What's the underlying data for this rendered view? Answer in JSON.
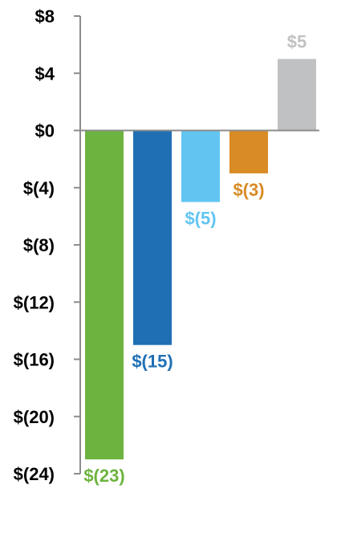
{
  "chart_data": {
    "type": "bar",
    "title": "",
    "xlabel": "",
    "ylabel": "",
    "ylim": [
      -24,
      8
    ],
    "y_ticks": [
      {
        "value": 8,
        "label": "$8"
      },
      {
        "value": 4,
        "label": "$4"
      },
      {
        "value": 0,
        "label": "$0"
      },
      {
        "value": -4,
        "label": "$(4)"
      },
      {
        "value": -8,
        "label": "$(8)"
      },
      {
        "value": -12,
        "label": "$(12)"
      },
      {
        "value": -16,
        "label": "$(16)"
      },
      {
        "value": -20,
        "label": "$(20)"
      },
      {
        "value": -24,
        "label": "$(24)"
      }
    ],
    "grid": false,
    "legend": "none",
    "bars": [
      {
        "value": -23,
        "label": "$(23)",
        "color": "#6db33f",
        "label_color": "#6db33f"
      },
      {
        "value": -15,
        "label": "$(15)",
        "color": "#1f6fb5",
        "label_color": "#1f6fb5"
      },
      {
        "value": -5,
        "label": "$(5)",
        "color": "#62c5f1",
        "label_color": "#62c5f1"
      },
      {
        "value": -3,
        "label": "$(3)",
        "color": "#d98b26",
        "label_color": "#d98b26"
      },
      {
        "value": 5,
        "label": "$5",
        "color": "#c0c1c2",
        "label_color": "#c0c1c2"
      }
    ],
    "axis_color": "#8c8c8c"
  }
}
